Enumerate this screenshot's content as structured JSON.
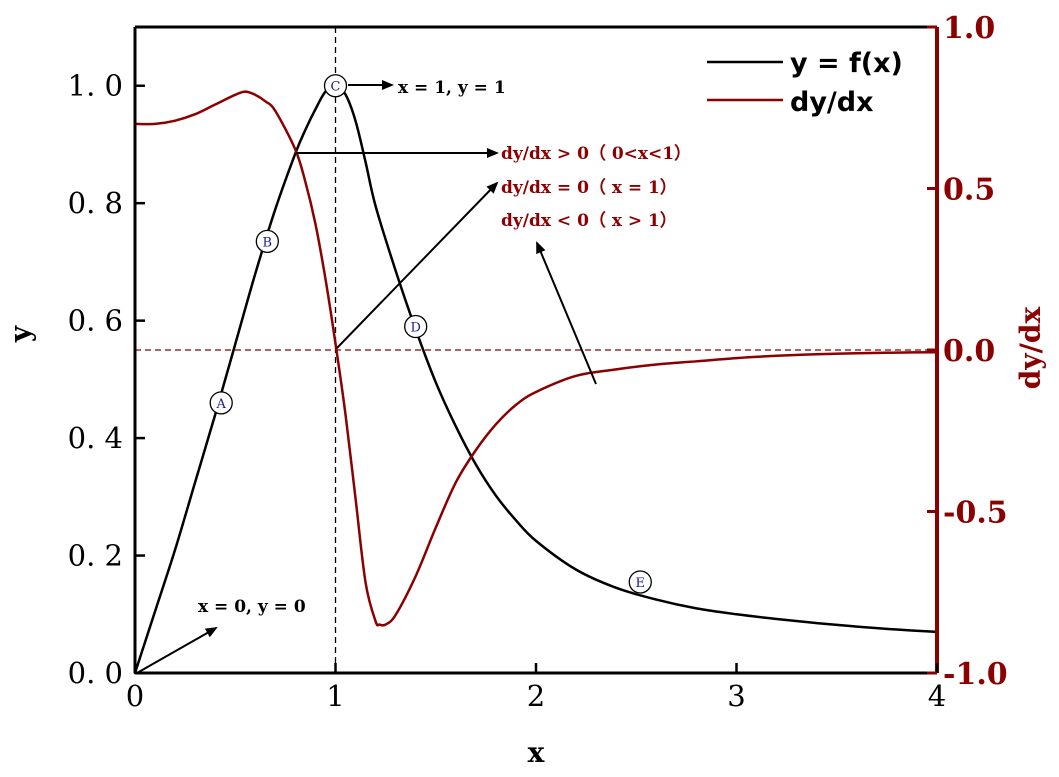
{
  "chart_data": {
    "type": "line",
    "xlabel": "x",
    "ylabel": "y",
    "y2label": "dy/dx",
    "xlim": [
      0,
      4
    ],
    "ylim": [
      0,
      1.1
    ],
    "y2lim": [
      -1.0,
      1.0
    ],
    "x_ticks": [
      {
        "value": 0,
        "label": "0"
      },
      {
        "value": 1,
        "label": "1"
      },
      {
        "value": 2,
        "label": "2"
      },
      {
        "value": 3,
        "label": "3"
      },
      {
        "value": 4,
        "label": "4"
      }
    ],
    "y_ticks": [
      {
        "value": 0.0,
        "label": "0. 0"
      },
      {
        "value": 0.2,
        "label": "0. 2"
      },
      {
        "value": 0.4,
        "label": "0. 4"
      },
      {
        "value": 0.6,
        "label": "0. 6"
      },
      {
        "value": 0.8,
        "label": "0. 8"
      },
      {
        "value": 1.0,
        "label": "1. 0"
      }
    ],
    "y2_ticks": [
      {
        "value": 1.0,
        "label": "1.0"
      },
      {
        "value": 0.5,
        "label": "0.5"
      },
      {
        "value": 0.0,
        "label": "0.0"
      },
      {
        "value": -0.5,
        "label": "-0.5"
      },
      {
        "value": -1.0,
        "label": "-1.0"
      }
    ],
    "grid": false,
    "legend_position": "top-right",
    "series": [
      {
        "name": "y = f(x)",
        "axis": "left",
        "color": "#000000",
        "x": [
          0,
          0.1,
          0.2,
          0.3,
          0.4,
          0.5,
          0.6,
          0.7,
          0.8,
          0.85,
          0.9,
          0.95,
          1.0,
          1.05,
          1.1,
          1.15,
          1.2,
          1.3,
          1.4,
          1.5,
          1.6,
          1.7,
          1.8,
          1.9,
          2.0,
          2.2,
          2.4,
          2.6,
          2.8,
          3.0,
          3.2,
          3.4,
          3.6,
          3.8,
          4.0
        ],
        "values": [
          0,
          0.105,
          0.21,
          0.325,
          0.44,
          0.56,
          0.68,
          0.79,
          0.885,
          0.925,
          0.96,
          0.99,
          1.0,
          0.985,
          0.94,
          0.87,
          0.795,
          0.685,
          0.585,
          0.495,
          0.42,
          0.355,
          0.302,
          0.26,
          0.225,
          0.176,
          0.145,
          0.125,
          0.11,
          0.1,
          0.092,
          0.085,
          0.079,
          0.074,
          0.07
        ]
      },
      {
        "name": "dy/dx",
        "axis": "right",
        "color": "#8b0000",
        "x": [
          0,
          0.1,
          0.2,
          0.3,
          0.4,
          0.5,
          0.55,
          0.6,
          0.65,
          0.7,
          0.8,
          0.85,
          0.9,
          0.95,
          1.0,
          1.05,
          1.1,
          1.15,
          1.2,
          1.22,
          1.25,
          1.3,
          1.4,
          1.5,
          1.6,
          1.7,
          1.8,
          1.9,
          2.0,
          2.2,
          2.4,
          2.6,
          2.8,
          3.0,
          3.2,
          3.4,
          3.6,
          3.8,
          4.0
        ],
        "values": [
          0.7,
          0.7,
          0.71,
          0.73,
          0.76,
          0.79,
          0.8,
          0.79,
          0.77,
          0.74,
          0.62,
          0.52,
          0.39,
          0.22,
          0.02,
          -0.2,
          -0.46,
          -0.72,
          -0.84,
          -0.85,
          -0.85,
          -0.82,
          -0.7,
          -0.55,
          -0.41,
          -0.31,
          -0.23,
          -0.17,
          -0.13,
          -0.08,
          -0.06,
          -0.045,
          -0.035,
          -0.025,
          -0.018,
          -0.013,
          -0.01,
          -0.008,
          -0.007
        ]
      }
    ],
    "points": [
      {
        "label": "A",
        "x": 0.43,
        "y": 0.46
      },
      {
        "label": "B",
        "x": 0.66,
        "y": 0.735
      },
      {
        "label": "C",
        "x": 1.0,
        "y": 1.0
      },
      {
        "label": "D",
        "x": 1.4,
        "y": 0.59
      },
      {
        "label": "E",
        "x": 2.52,
        "y": 0.155
      }
    ],
    "reference_lines": {
      "vertical_x": 1.0,
      "horizontal_y2": 0.0
    },
    "annotations": [
      {
        "text": "x = 1, y = 1",
        "color": "#000000"
      },
      {
        "text": "x = 0, y = 0",
        "color": "#000000"
      },
      {
        "text": "dy/dx > 0（ 0<x<1）",
        "color": "#8b0000"
      },
      {
        "text": "dy/dx = 0（ x = 1）",
        "color": "#8b0000"
      },
      {
        "text": "dy/dx < 0（ x > 1）",
        "color": "#8b0000"
      }
    ]
  }
}
